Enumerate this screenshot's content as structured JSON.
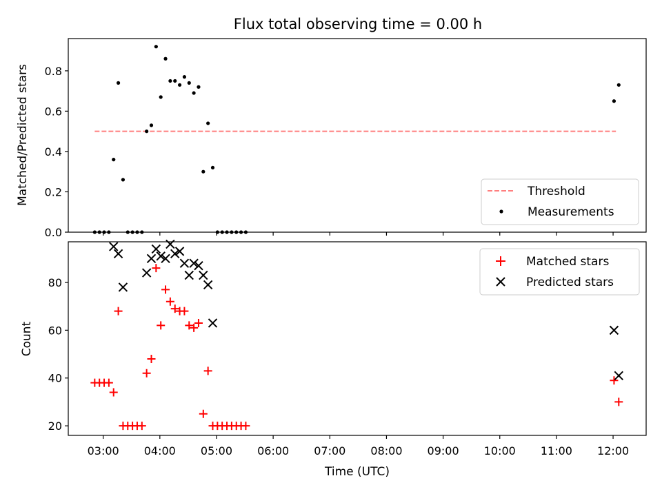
{
  "chart_data": [
    {
      "type": "scatter",
      "panel": "top",
      "title": "Flux total observing time = 0.00 h",
      "xlabel": "",
      "ylabel": "Matched/Predicted stars",
      "xlim": [
        "02:23",
        "12:35"
      ],
      "ylim": [
        0,
        0.96
      ],
      "yticks": [
        "0.0",
        "0.2",
        "0.4",
        "0.6",
        "0.8"
      ],
      "grid": false,
      "legend_position": "bottom-right",
      "threshold": {
        "name": "Threshold",
        "color": "#ff7f7f",
        "y": 0.5,
        "x_start": "02:51",
        "x_end": "12:03"
      },
      "series": [
        {
          "name": "Measurements",
          "color": "#000000",
          "x": [
            "02:51",
            "02:56",
            "03:01",
            "03:06",
            "03:11",
            "03:16",
            "03:21",
            "03:26",
            "03:31",
            "03:36",
            "03:41",
            "03:46",
            "03:51",
            "03:56",
            "04:01",
            "04:06",
            "04:11",
            "04:16",
            "04:21",
            "04:26",
            "04:31",
            "04:36",
            "04:41",
            "04:46",
            "04:51",
            "04:56",
            "05:01",
            "05:06",
            "05:11",
            "05:16",
            "05:21",
            "05:26",
            "05:31",
            "12:01",
            "12:06"
          ],
          "y": [
            0.0,
            0.0,
            0.0,
            0.0,
            0.36,
            0.74,
            0.26,
            0.0,
            0.0,
            0.0,
            0.0,
            0.5,
            0.53,
            0.92,
            0.67,
            0.86,
            0.75,
            0.75,
            0.73,
            0.77,
            0.74,
            0.69,
            0.72,
            0.3,
            0.54,
            0.32,
            0.0,
            0.0,
            0.0,
            0.0,
            0.0,
            0.0,
            0.0,
            0.65,
            0.73
          ]
        }
      ]
    },
    {
      "type": "scatter",
      "panel": "bottom",
      "title": "",
      "xlabel": "Time (UTC)",
      "ylabel": "Count",
      "xlim": [
        "02:23",
        "12:35"
      ],
      "ylim": [
        16,
        97
      ],
      "yticks": [
        "20",
        "40",
        "60",
        "80"
      ],
      "xticks": [
        "03:00",
        "04:00",
        "05:00",
        "06:00",
        "07:00",
        "08:00",
        "09:00",
        "10:00",
        "11:00",
        "12:00"
      ],
      "grid": false,
      "legend_position": "top-right",
      "series": [
        {
          "name": "Matched stars",
          "color": "#ff0000",
          "marker": "plus",
          "x": [
            "02:51",
            "02:56",
            "03:01",
            "03:06",
            "03:11",
            "03:16",
            "03:21",
            "03:26",
            "03:31",
            "03:36",
            "03:41",
            "03:46",
            "03:51",
            "03:56",
            "04:01",
            "04:06",
            "04:11",
            "04:16",
            "04:21",
            "04:26",
            "04:31",
            "04:36",
            "04:41",
            "04:46",
            "04:51",
            "04:56",
            "05:01",
            "05:06",
            "05:11",
            "05:16",
            "05:21",
            "05:26",
            "05:31",
            "12:01",
            "12:06"
          ],
          "y": [
            38,
            38,
            38,
            38,
            34,
            68,
            20,
            20,
            20,
            20,
            20,
            42,
            48,
            86,
            62,
            77,
            72,
            69,
            68,
            68,
            62,
            61,
            63,
            25,
            43,
            20,
            20,
            20,
            20,
            20,
            20,
            20,
            20,
            39,
            30
          ]
        },
        {
          "name": "Predicted stars",
          "color": "#000000",
          "marker": "x",
          "x": [
            "03:11",
            "03:16",
            "03:21",
            "03:46",
            "03:51",
            "03:56",
            "04:01",
            "04:06",
            "04:11",
            "04:16",
            "04:21",
            "04:26",
            "04:31",
            "04:36",
            "04:41",
            "04:46",
            "04:51",
            "04:56",
            "12:01",
            "12:06"
          ],
          "y": [
            95,
            92,
            78,
            84,
            90,
            94,
            91,
            90,
            96,
            92,
            93,
            88,
            83,
            88,
            87,
            83,
            79,
            63,
            60,
            41
          ]
        }
      ]
    }
  ]
}
